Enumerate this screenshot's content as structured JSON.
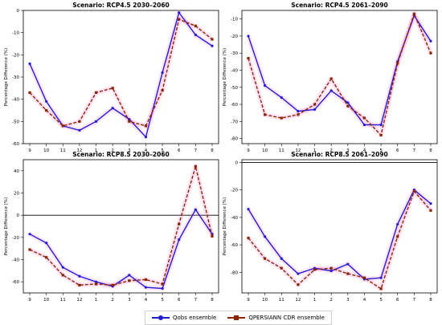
{
  "colors": {
    "qobs": "#1f1fd0",
    "qpersiann": "#8b2500",
    "shade": "#ff66cc"
  },
  "legend": {
    "qobs": "Qobs ensemble",
    "qpersiann": "QPERSIANN CDR ensemble"
  },
  "chart_data": [
    {
      "type": "line",
      "title": "Scenario: RCP4.5 2030–2060",
      "ylabel": "Percentage Difference (%)",
      "categories": [
        "9",
        "10",
        "11",
        "12",
        "1",
        "2",
        "3",
        "4",
        "5",
        "6",
        "7",
        "8"
      ],
      "ylim": [
        -60,
        0
      ],
      "yticks": [
        0,
        -10,
        -20,
        -30,
        -40,
        -50,
        -60
      ],
      "zero_line": false,
      "series": [
        {
          "name": "Qobs ensemble",
          "values": [
            -24,
            -41,
            -52,
            -54,
            -50,
            -44,
            -49,
            -57,
            -28,
            -1,
            -11,
            -16
          ]
        },
        {
          "name": "QPERSIANN CDR ensemble",
          "values": [
            -37,
            -45,
            -52,
            -50,
            -37,
            -35,
            -50,
            -52,
            -36,
            -4,
            -7,
            -13
          ]
        }
      ]
    },
    {
      "type": "line",
      "title": "Scenario: RCP4.5 2061–2090",
      "ylabel": "Percentage Difference (%)",
      "categories": [
        "9",
        "10",
        "11",
        "12",
        "1",
        "2",
        "3",
        "4",
        "5",
        "6",
        "7",
        "8"
      ],
      "ylim": [
        -83,
        -5
      ],
      "yticks": [
        -10,
        -20,
        -30,
        -40,
        -50,
        -60,
        -70,
        -80
      ],
      "zero_line": false,
      "series": [
        {
          "name": "Qobs ensemble",
          "values": [
            -20,
            -49,
            -56,
            -64,
            -63,
            -52,
            -59,
            -72,
            -72,
            -35,
            -8,
            -23
          ]
        },
        {
          "name": "QPERSIANN CDR ensemble",
          "values": [
            -33,
            -66,
            -68,
            -66,
            -60,
            -45,
            -61,
            -68,
            -78,
            -36,
            -7,
            -30
          ]
        }
      ]
    },
    {
      "type": "line",
      "title": "Scenario: RCP8.5 2030–2060",
      "ylabel": "Percentage Difference (%)",
      "categories": [
        "9",
        "10",
        "11",
        "12",
        "1",
        "2",
        "3",
        "4",
        "5",
        "6",
        "7",
        "8"
      ],
      "ylim": [
        -70,
        50
      ],
      "yticks": [
        40,
        20,
        0,
        -20,
        -40,
        -60
      ],
      "zero_line": true,
      "series": [
        {
          "name": "Qobs ensemble",
          "values": [
            -17,
            -25,
            -47,
            -55,
            -60,
            -64,
            -54,
            -65,
            -66,
            -22,
            5,
            -17
          ]
        },
        {
          "name": "QPERSIANN CDR ensemble",
          "values": [
            -31,
            -38,
            -54,
            -63,
            -62,
            -63,
            -59,
            -58,
            -62,
            -8,
            44,
            -19
          ]
        }
      ]
    },
    {
      "type": "line",
      "title": "Scenario: RCP8.5 2061–2090",
      "ylabel": "Percentage Difference (%)",
      "categories": [
        "9",
        "10",
        "11",
        "12",
        "1",
        "2",
        "3",
        "4",
        "5",
        "6",
        "7",
        "8"
      ],
      "ylim": [
        -95,
        2
      ],
      "yticks": [
        0,
        -20,
        -40,
        -60,
        -80
      ],
      "zero_line": true,
      "series": [
        {
          "name": "Qobs ensemble",
          "values": [
            -34,
            -54,
            -70,
            -81,
            -77,
            -79,
            -74,
            -85,
            -84,
            -45,
            -20,
            -30
          ]
        },
        {
          "name": "QPERSIANN CDR ensemble",
          "values": [
            -55,
            -70,
            -77,
            -89,
            -78,
            -77,
            -81,
            -84,
            -92,
            -54,
            -21,
            -35
          ]
        }
      ]
    }
  ]
}
